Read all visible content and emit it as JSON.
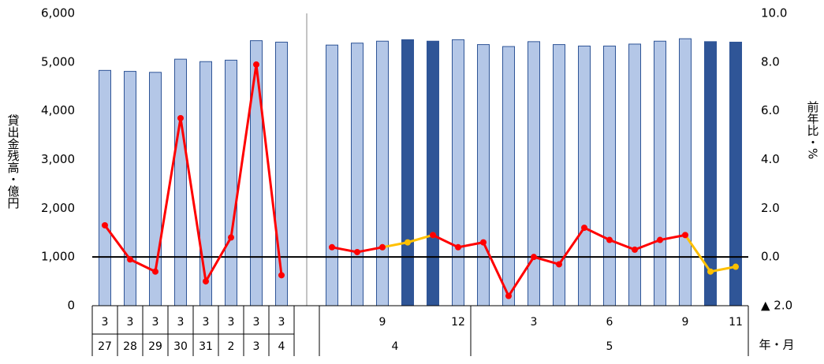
{
  "chart_data": {
    "type": "bar",
    "categories": [
      "3",
      "3",
      "3",
      "3",
      "3",
      "3",
      "3",
      "3",
      null,
      null,
      null,
      "9",
      null,
      null,
      "12",
      null,
      null,
      "3",
      null,
      null,
      "6",
      null,
      null,
      "9",
      null,
      "11"
    ],
    "category_groups": [
      {
        "label": "27",
        "count": 1
      },
      {
        "label": "28",
        "count": 1
      },
      {
        "label": "29",
        "count": 1
      },
      {
        "label": "30",
        "count": 1
      },
      {
        "label": "31",
        "count": 1
      },
      {
        "label": "2",
        "count": 1
      },
      {
        "label": "3",
        "count": 1
      },
      {
        "label": "4",
        "count": 1
      },
      {
        "label": null,
        "count": 1
      },
      {
        "label": "4",
        "count": 6
      },
      {
        "label": "5",
        "count": 11
      }
    ],
    "y_label": "貸出金残高・億円",
    "y2_label": "前年比・%",
    "x_label": "年・月",
    "ylim": [
      0,
      6000
    ],
    "yticks": [
      0,
      {
        "value": 1000,
        "label": "1,000"
      },
      {
        "value": 2000,
        "label": "2,000"
      },
      {
        "value": 3000,
        "label": "3,000"
      },
      {
        "value": 4000,
        "label": "4,000"
      },
      {
        "value": 5000,
        "label": "5,000"
      },
      {
        "value": 6000,
        "label": "6,000"
      }
    ],
    "y2lim": [
      -2,
      10
    ],
    "y2ticks": [
      {
        "value": -2,
        "label": "▲ 2.0"
      },
      {
        "value": 0,
        "label": "0.0"
      },
      {
        "value": 2,
        "label": "2.0"
      },
      {
        "value": 4,
        "label": "4.0"
      },
      {
        "value": 6,
        "label": "6.0"
      },
      {
        "value": 8,
        "label": "8.0"
      },
      {
        "value": 10,
        "label": "10.0"
      }
    ],
    "series": [
      {
        "type": "bar",
        "color": "#b4c7e7",
        "edge_color": "#2f5597",
        "colors": [
          "#b4c7e7",
          "#b4c7e7",
          "#b4c7e7",
          "#b4c7e7",
          "#b4c7e7",
          "#b4c7e7",
          "#b4c7e7",
          "#b4c7e7",
          null,
          "#b4c7e7",
          "#b4c7e7",
          "#b4c7e7",
          "#2f5597",
          "#2f5597",
          "#b4c7e7",
          "#b4c7e7",
          "#b4c7e7",
          "#b4c7e7",
          "#b4c7e7",
          "#b4c7e7",
          "#b4c7e7",
          "#b4c7e7",
          "#b4c7e7",
          "#b4c7e7",
          "#2f5597",
          "#2f5597"
        ],
        "values": [
          4830,
          4810,
          4790,
          5060,
          5010,
          5040,
          5440,
          5410,
          null,
          5350,
          5390,
          5430,
          5460,
          5430,
          5460,
          5360,
          5320,
          5420,
          5360,
          5330,
          5330,
          5370,
          5430,
          5480,
          5420,
          5410
        ]
      },
      {
        "type": "line",
        "axis": "y2",
        "color": "#ffc000",
        "values": [
          null,
          null,
          null,
          null,
          null,
          null,
          null,
          null,
          null,
          null,
          null,
          0.4,
          0.6,
          0.9,
          null,
          null,
          null,
          null,
          null,
          null,
          null,
          null,
          null,
          0.9,
          -0.6,
          -0.4
        ]
      },
      {
        "type": "line",
        "axis": "y2",
        "color": "#ff0000",
        "values": [
          1.3,
          -0.1,
          -0.6,
          5.7,
          -1.0,
          0.8,
          7.9,
          -0.75,
          null,
          0.4,
          0.2,
          0.4,
          null,
          0.9,
          0.4,
          0.6,
          -1.6,
          0.0,
          -0.3,
          1.2,
          0.7,
          0.3,
          0.7,
          0.9,
          null,
          null
        ]
      }
    ],
    "zero_line_y2": 0
  }
}
